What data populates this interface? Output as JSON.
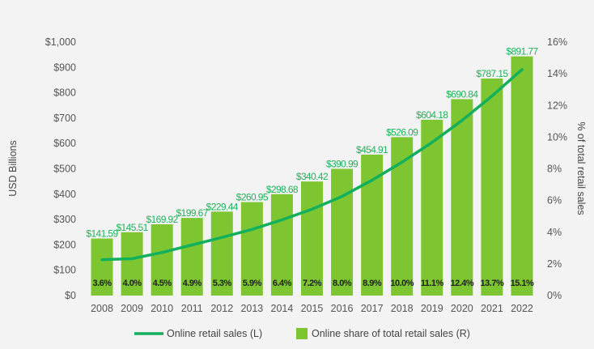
{
  "chart_data": {
    "type": "bar",
    "categories": [
      "2008",
      "2009",
      "2010",
      "2011",
      "2012",
      "2013",
      "2014",
      "2015",
      "2016",
      "2017",
      "2018",
      "2019",
      "2020",
      "2021",
      "2022"
    ],
    "series": [
      {
        "name": "Online share of total retail sales (R)",
        "type": "bar",
        "axis": "right",
        "color": "#7dc631",
        "values": [
          3.6,
          4.0,
          4.5,
          4.9,
          5.3,
          5.9,
          6.4,
          7.2,
          8.0,
          8.9,
          10.0,
          11.1,
          12.4,
          13.7,
          15.1
        ],
        "labels": [
          "3.6%",
          "4.0%",
          "4.5%",
          "4.9%",
          "5.3%",
          "5.9%",
          "6.4%",
          "7.2%",
          "8.0%",
          "8.9%",
          "10.0%",
          "11.1%",
          "12.4%",
          "13.7%",
          "15.1%"
        ]
      },
      {
        "name": "Online retail sales (L)",
        "type": "line",
        "axis": "left",
        "color": "#12b05c",
        "values": [
          141.59,
          145.51,
          169.92,
          199.67,
          229.44,
          260.95,
          298.68,
          340.42,
          390.99,
          454.91,
          526.09,
          604.18,
          690.84,
          787.15,
          891.77
        ],
        "labels": [
          "$141.59",
          "$145.51",
          "$169.92",
          "$199.67",
          "$229.44",
          "$260.95",
          "$298.68",
          "$340.42",
          "$390.99",
          "$454.91",
          "$526.09",
          "$604.18",
          "$690.84",
          "$787.15",
          "$891.77"
        ]
      }
    ],
    "ylabel": "USD Billions",
    "ylabel_right": "% of total retail sales",
    "ylim": [
      0,
      1000
    ],
    "ylim_right": [
      0,
      16
    ],
    "yticks": [
      "$0",
      "$100",
      "$200",
      "$300",
      "$400",
      "$500",
      "$600",
      "$700",
      "$800",
      "$900",
      "$1,000"
    ],
    "yticks_right": [
      "0%",
      "2%",
      "4%",
      "6%",
      "8%",
      "10%",
      "12%",
      "14%",
      "16%"
    ],
    "legend_placement": "bottom",
    "grid": false
  }
}
